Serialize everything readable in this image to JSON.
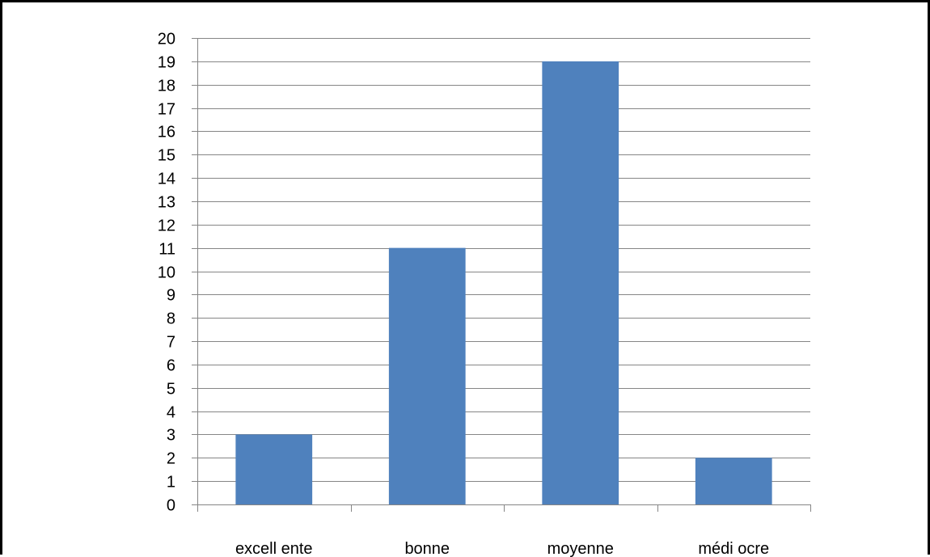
{
  "chart_data": {
    "type": "bar",
    "categories": [
      "excell ente",
      "bonne",
      "moyenne",
      "médi ocre"
    ],
    "values": [
      3,
      11,
      19,
      2
    ],
    "title": "",
    "xlabel": "",
    "ylabel": "",
    "ylim": [
      0,
      20
    ],
    "yticks": [
      0,
      1,
      2,
      3,
      4,
      5,
      6,
      7,
      8,
      9,
      10,
      11,
      12,
      13,
      14,
      15,
      16,
      17,
      18,
      19,
      20
    ],
    "grid": true,
    "legend": "none",
    "bar_color": "#4F81BD",
    "grid_color": "#868686"
  }
}
